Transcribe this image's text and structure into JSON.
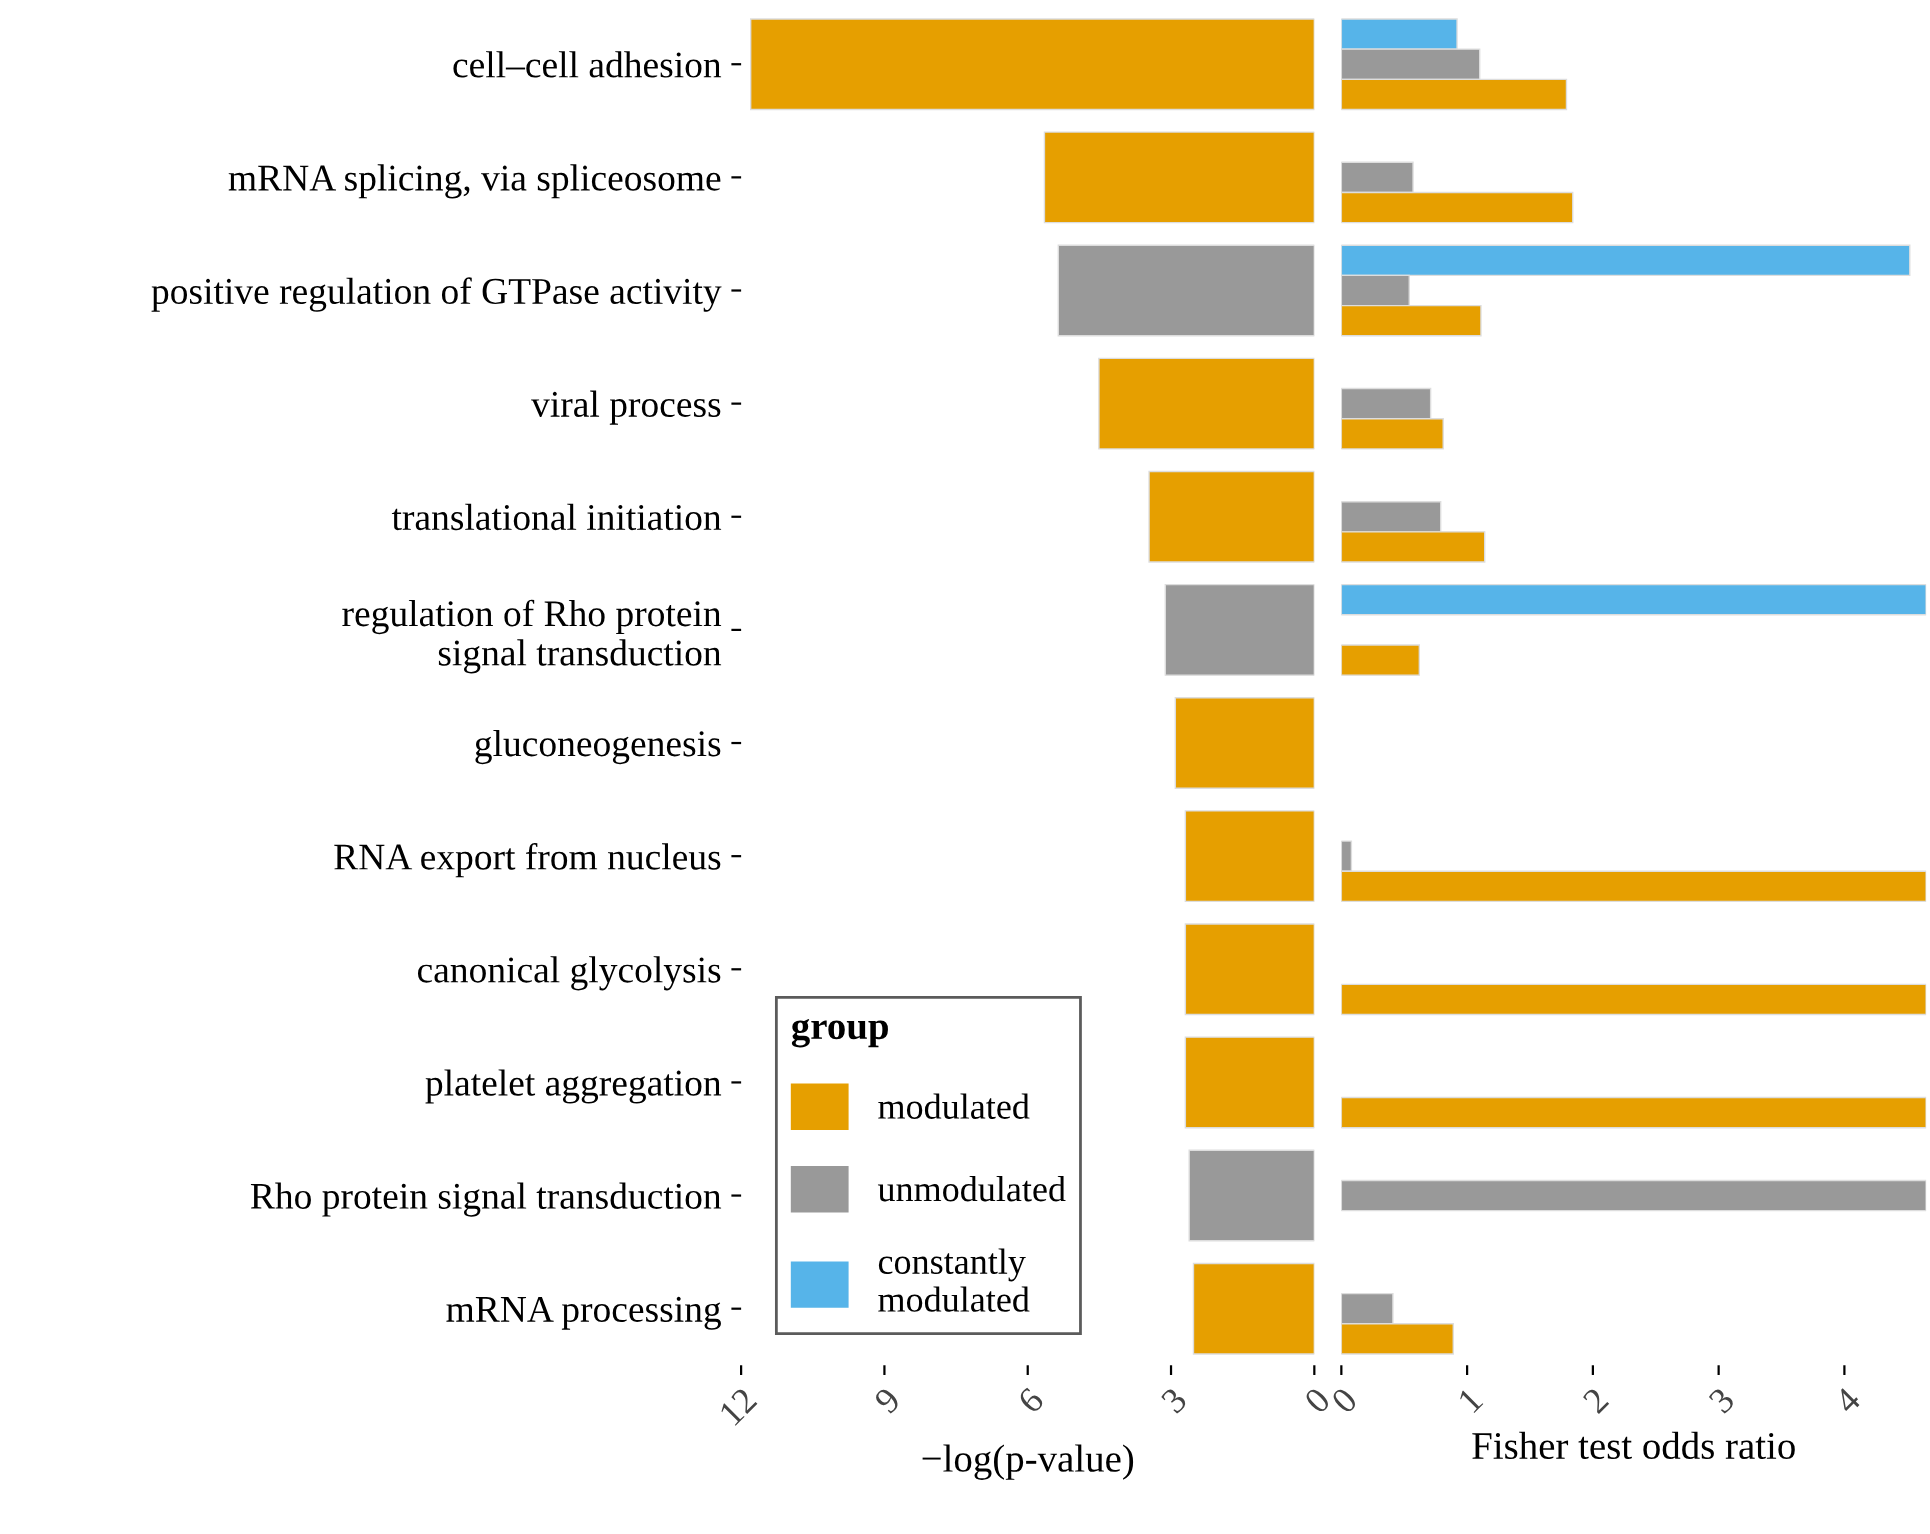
{
  "chart_data": [
    {
      "type": "bar",
      "orientation": "horizontal",
      "categories": [
        "cell–cell adhesion",
        "mRNA splicing, via spliceosome",
        "positive regulation of GTPase activity",
        "viral process",
        "translational initiation",
        "regulation of Rho protein\nsignal transduction",
        "gluconeogenesis",
        "RNA export from nucleus",
        "canonical glycolysis",
        "platelet aggregation",
        "Rho protein signal transduction",
        "mRNA processing"
      ],
      "values": [
        11.8,
        5.65,
        5.36,
        4.51,
        3.46,
        3.12,
        2.91,
        2.7,
        2.7,
        2.7,
        2.62,
        2.53
      ],
      "colors": [
        "#e69f00",
        "#e69f00",
        "#999999",
        "#e69f00",
        "#e69f00",
        "#999999",
        "#e69f00",
        "#e69f00",
        "#e69f00",
        "#e69f00",
        "#999999",
        "#e69f00"
      ],
      "xlim": [
        12,
        0
      ],
      "xticks": [
        12,
        9,
        6,
        3,
        0
      ],
      "xlabel": "−log(p-value)",
      "grid": false
    },
    {
      "type": "bar",
      "orientation": "horizontal",
      "categories": [
        null,
        null,
        null,
        null,
        null,
        null,
        null,
        null,
        null,
        null,
        null,
        null
      ],
      "series": [
        {
          "name": "constantly\nmodulated",
          "color": "#56b4e9",
          "values": [
            0.92,
            null,
            4.52,
            null,
            null,
            4.65,
            null,
            null,
            null,
            null,
            null,
            null
          ]
        },
        {
          "name": "unmodulated",
          "color": "#999999",
          "values": [
            1.1,
            0.57,
            0.54,
            0.71,
            0.79,
            null,
            null,
            0.08,
            null,
            null,
            4.65,
            0.41
          ]
        },
        {
          "name": "modulated",
          "color": "#e69f00",
          "values": [
            1.79,
            1.84,
            1.11,
            0.81,
            1.14,
            0.62,
            null,
            4.65,
            4.65,
            4.65,
            null,
            0.89
          ]
        }
      ],
      "xlim": [
        0,
        4.65
      ],
      "xticks": [
        0,
        1,
        2,
        3,
        4
      ],
      "xlabel": "Fisher test odds ratio",
      "tick_labels": "x",
      "legend": "bottom left",
      "legend_title": "group",
      "grid": false
    }
  ]
}
